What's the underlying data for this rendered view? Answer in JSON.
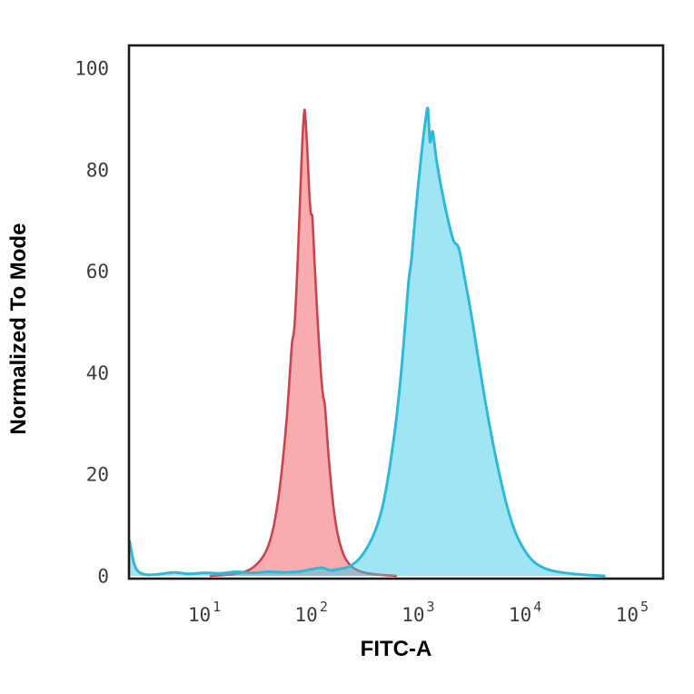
{
  "figure": {
    "background": "#ffffff",
    "border_color": "#1a1a1a",
    "tick_color": "#3c3c3c"
  },
  "chart_data": {
    "type": "area",
    "chart_kind": "flow-cytometry-histogram",
    "title": "",
    "xlabel": "FITC-A",
    "ylabel": "Normalized To Mode",
    "x_scale": "log10",
    "xlim_log10": [
      0.295,
      5.29
    ],
    "ylim": [
      0,
      100
    ],
    "grid": false,
    "legend": false,
    "x_ticks": [
      {
        "base": "10",
        "exp": "1",
        "log10": 1
      },
      {
        "base": "10",
        "exp": "2",
        "log10": 2
      },
      {
        "base": "10",
        "exp": "3",
        "log10": 3
      },
      {
        "base": "10",
        "exp": "4",
        "log10": 4
      },
      {
        "base": "10",
        "exp": "5",
        "log10": 5
      }
    ],
    "y_ticks": [
      {
        "label": "100",
        "value": 100
      },
      {
        "label": "80",
        "value": 80
      },
      {
        "label": "60",
        "value": 60
      },
      {
        "label": "40",
        "value": 40
      },
      {
        "label": "20",
        "value": 20
      },
      {
        "label": "0",
        "value": 0
      }
    ],
    "series": [
      {
        "name": "red-series",
        "fill": "rgba(240,70,80,0.45)",
        "stroke": "#c9454e",
        "stroke_width": 2.6,
        "peak": {
          "log10x": 1.935,
          "y": 91.5
        },
        "points_log10x_y": [
          [
            1.05,
            0
          ],
          [
            1.25,
            0.3
          ],
          [
            1.4,
            1
          ],
          [
            1.5,
            2.5
          ],
          [
            1.58,
            5
          ],
          [
            1.64,
            9
          ],
          [
            1.69,
            15
          ],
          [
            1.73,
            22
          ],
          [
            1.77,
            31
          ],
          [
            1.8,
            40
          ],
          [
            1.82,
            46
          ],
          [
            1.84,
            48.5
          ],
          [
            1.86,
            56
          ],
          [
            1.88,
            66
          ],
          [
            1.9,
            77
          ],
          [
            1.915,
            85
          ],
          [
            1.93,
            90.5
          ],
          [
            1.94,
            91.5
          ],
          [
            1.96,
            85
          ],
          [
            1.98,
            76
          ],
          [
            1.995,
            71.5
          ],
          [
            2.01,
            70.5
          ],
          [
            2.03,
            62
          ],
          [
            2.06,
            50
          ],
          [
            2.09,
            40
          ],
          [
            2.11,
            35.5
          ],
          [
            2.125,
            34
          ],
          [
            2.14,
            30
          ],
          [
            2.16,
            24
          ],
          [
            2.19,
            17
          ],
          [
            2.22,
            11.5
          ],
          [
            2.26,
            7
          ],
          [
            2.31,
            3.8
          ],
          [
            2.38,
            1.8
          ],
          [
            2.47,
            0.8
          ],
          [
            2.6,
            0.3
          ],
          [
            2.8,
            0
          ]
        ]
      },
      {
        "name": "cyan-series",
        "fill": "rgba(56,200,232,0.48)",
        "stroke": "#2fb9d9",
        "stroke_width": 3,
        "peak": {
          "log10x": 3.09,
          "y": 92
        },
        "points_log10x_y": [
          [
            0.3,
            7
          ],
          [
            0.33,
            3.5
          ],
          [
            0.36,
            1.5
          ],
          [
            0.4,
            0.6
          ],
          [
            0.48,
            0.2
          ],
          [
            0.6,
            0.4
          ],
          [
            0.72,
            0.7
          ],
          [
            0.85,
            0.4
          ],
          [
            1.0,
            0.6
          ],
          [
            1.15,
            0.5
          ],
          [
            1.3,
            0.8
          ],
          [
            1.45,
            0.6
          ],
          [
            1.6,
            0.8
          ],
          [
            1.75,
            0.7
          ],
          [
            1.9,
            0.9
          ],
          [
            2.0,
            1.3
          ],
          [
            2.1,
            1.6
          ],
          [
            2.18,
            1.1
          ],
          [
            2.27,
            1.4
          ],
          [
            2.35,
            1.8
          ],
          [
            2.44,
            3.2
          ],
          [
            2.52,
            5.5
          ],
          [
            2.6,
            9
          ],
          [
            2.67,
            14
          ],
          [
            2.73,
            21
          ],
          [
            2.79,
            30
          ],
          [
            2.84,
            40
          ],
          [
            2.88,
            50
          ],
          [
            2.91,
            58
          ],
          [
            2.935,
            62
          ],
          [
            2.96,
            68
          ],
          [
            3.0,
            77
          ],
          [
            3.04,
            85
          ],
          [
            3.07,
            90
          ],
          [
            3.09,
            92
          ],
          [
            3.11,
            85.5
          ],
          [
            3.135,
            87.5
          ],
          [
            3.17,
            82
          ],
          [
            3.22,
            76
          ],
          [
            3.28,
            70
          ],
          [
            3.33,
            66
          ],
          [
            3.38,
            64.5
          ],
          [
            3.44,
            58
          ],
          [
            3.5,
            51
          ],
          [
            3.56,
            43
          ],
          [
            3.63,
            34
          ],
          [
            3.7,
            26
          ],
          [
            3.77,
            19
          ],
          [
            3.84,
            13
          ],
          [
            3.91,
            8.5
          ],
          [
            3.99,
            5.2
          ],
          [
            4.07,
            3
          ],
          [
            4.16,
            1.7
          ],
          [
            4.28,
            0.9
          ],
          [
            4.45,
            0.4
          ],
          [
            4.6,
            0.15
          ],
          [
            4.75,
            0
          ]
        ]
      }
    ]
  }
}
